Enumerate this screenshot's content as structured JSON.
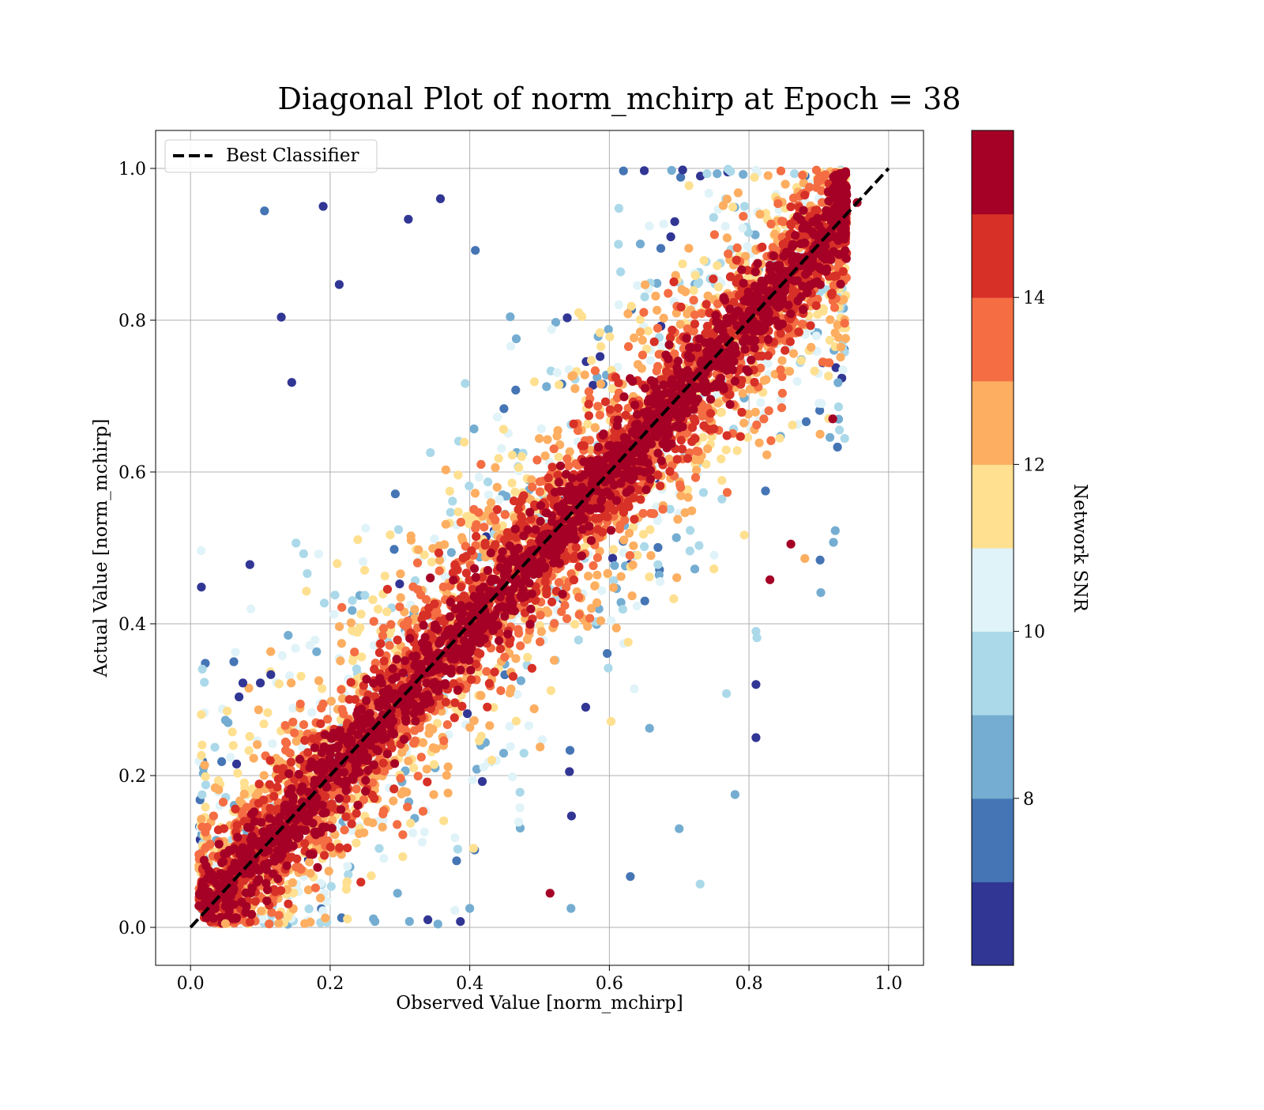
{
  "chart_data": {
    "type": "scatter",
    "title": "Diagonal Plot of norm_mchirp at Epoch = 38",
    "xlabel": "Observed Value [norm_mchirp]",
    "ylabel": "Actual Value [norm_mchirp]",
    "xlim": [
      -0.05,
      1.05
    ],
    "ylim": [
      -0.05,
      1.05
    ],
    "xticks": [
      "0.0",
      "0.2",
      "0.4",
      "0.6",
      "0.8",
      "1.0"
    ],
    "yticks": [
      "0.0",
      "0.2",
      "0.4",
      "0.6",
      "0.8",
      "1.0"
    ],
    "xtick_values": [
      0,
      0.2,
      0.4,
      0.6,
      0.8,
      1.0
    ],
    "ytick_values": [
      0,
      0.2,
      0.4,
      0.6,
      0.8,
      1.0
    ],
    "grid": true,
    "legend": {
      "position": "top-left",
      "entries": [
        "Best Classifier"
      ]
    },
    "reference_line": {
      "name": "Best Classifier",
      "x": [
        0,
        1
      ],
      "y": [
        0,
        1
      ],
      "style": "dashed",
      "color": "#000000"
    },
    "colorbar": {
      "label": "Network SNR",
      "range": [
        6.0,
        16.0
      ],
      "tick_values": [
        8,
        10,
        12,
        14
      ],
      "ticks": [
        "8",
        "10",
        "12",
        "14"
      ],
      "bands": [
        "#313695",
        "#4575b4",
        "#74add1",
        "#abd9e9",
        "#e0f3f8",
        "#fee090",
        "#fdae61",
        "#f46d43",
        "#d73027",
        "#a50026"
      ]
    },
    "series": [
      {
        "color_by": "Network SNR",
        "points": [
          {
            "x": 0.106,
            "y": 0.944,
            "snr": 7.0
          },
          {
            "x": 0.13,
            "y": 0.804,
            "snr": 6.5
          },
          {
            "x": 0.085,
            "y": 0.478,
            "snr": 6.3
          },
          {
            "x": 0.145,
            "y": 0.718,
            "snr": 6.4
          },
          {
            "x": 0.19,
            "y": 0.95,
            "snr": 6.6
          },
          {
            "x": 0.213,
            "y": 0.847,
            "snr": 6.8
          },
          {
            "x": 0.358,
            "y": 0.96,
            "snr": 6.4
          },
          {
            "x": 0.312,
            "y": 0.933,
            "snr": 6.4
          },
          {
            "x": 0.408,
            "y": 0.892,
            "snr": 7.6
          },
          {
            "x": 0.05,
            "y": 0.273,
            "snr": 8.2
          },
          {
            "x": 0.075,
            "y": 0.322,
            "snr": 6.4
          },
          {
            "x": 0.1,
            "y": 0.322,
            "snr": 6.6
          },
          {
            "x": 0.115,
            "y": 0.333,
            "snr": 6.5
          },
          {
            "x": 0.88,
            "y": 0.486,
            "snr": 12.5
          },
          {
            "x": 0.83,
            "y": 0.458,
            "snr": 15.5
          },
          {
            "x": 0.86,
            "y": 0.505,
            "snr": 15.6
          },
          {
            "x": 0.92,
            "y": 0.67,
            "snr": 15.5
          },
          {
            "x": 0.81,
            "y": 0.39,
            "snr": 9.4
          },
          {
            "x": 0.81,
            "y": 0.32,
            "snr": 6.6
          },
          {
            "x": 0.81,
            "y": 0.25,
            "snr": 6.4
          },
          {
            "x": 0.78,
            "y": 0.175,
            "snr": 8.4
          },
          {
            "x": 0.73,
            "y": 0.057,
            "snr": 9.5
          },
          {
            "x": 0.7,
            "y": 0.13,
            "snr": 8.6
          },
          {
            "x": 0.63,
            "y": 0.067,
            "snr": 7.2
          },
          {
            "x": 0.515,
            "y": 0.045,
            "snr": 15.5
          },
          {
            "x": 0.545,
            "y": 0.025,
            "snr": 8.0
          },
          {
            "x": 0.34,
            "y": 0.01,
            "snr": 6.4
          },
          {
            "x": 0.4,
            "y": 0.025,
            "snr": 8.4
          },
          {
            "x": 0.05,
            "y": 0.005,
            "snr": 12.6
          },
          {
            "x": 0.94,
            "y": 0.965,
            "snr": 15.6
          },
          {
            "x": 0.955,
            "y": 0.955,
            "snr": 15.7
          },
          {
            "x": 0.65,
            "y": 0.997,
            "snr": 6.4
          },
          {
            "x": 0.705,
            "y": 0.998,
            "snr": 6.3
          },
          {
            "x": 0.77,
            "y": 0.999,
            "snr": 9.6
          }
        ]
      }
    ]
  }
}
